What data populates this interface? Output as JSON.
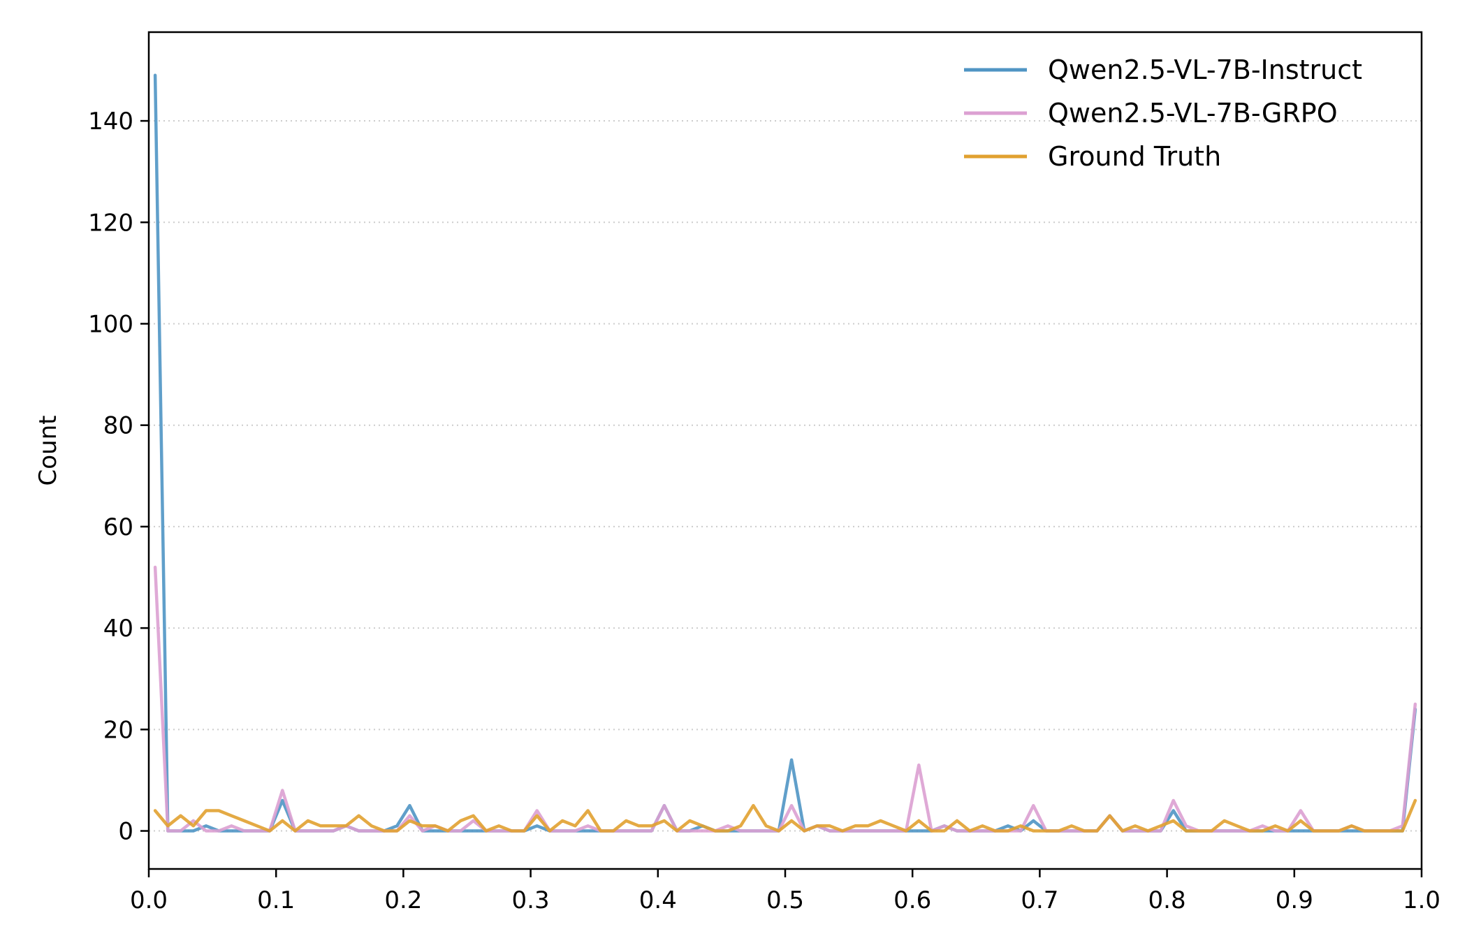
{
  "chart_data": {
    "type": "line",
    "title": "",
    "xlabel": "",
    "ylabel": "Count",
    "xlim": [
      0.0,
      1.0
    ],
    "ylim": [
      -7.5,
      157.5
    ],
    "xticks": [
      "0.0",
      "0.1",
      "0.2",
      "0.3",
      "0.4",
      "0.5",
      "0.6",
      "0.7",
      "0.8",
      "0.9",
      "1.0"
    ],
    "yticks": [
      "0",
      "20",
      "40",
      "60",
      "80",
      "100",
      "120",
      "140"
    ],
    "grid": "y-dotted",
    "legend_position": "top-right",
    "x": [
      0.005,
      0.015,
      0.025,
      0.035,
      0.045,
      0.055,
      0.065,
      0.075,
      0.085,
      0.095,
      0.105,
      0.115,
      0.125,
      0.135,
      0.145,
      0.155,
      0.165,
      0.175,
      0.185,
      0.195,
      0.205,
      0.215,
      0.225,
      0.235,
      0.245,
      0.255,
      0.265,
      0.275,
      0.285,
      0.295,
      0.305,
      0.315,
      0.325,
      0.335,
      0.345,
      0.355,
      0.365,
      0.375,
      0.385,
      0.395,
      0.405,
      0.415,
      0.425,
      0.435,
      0.445,
      0.455,
      0.465,
      0.475,
      0.485,
      0.495,
      0.505,
      0.515,
      0.525,
      0.535,
      0.545,
      0.555,
      0.565,
      0.575,
      0.585,
      0.595,
      0.605,
      0.615,
      0.625,
      0.635,
      0.645,
      0.655,
      0.665,
      0.675,
      0.685,
      0.695,
      0.705,
      0.715,
      0.725,
      0.735,
      0.745,
      0.755,
      0.765,
      0.775,
      0.785,
      0.795,
      0.805,
      0.815,
      0.825,
      0.835,
      0.845,
      0.855,
      0.865,
      0.875,
      0.885,
      0.895,
      0.905,
      0.915,
      0.925,
      0.935,
      0.945,
      0.955,
      0.965,
      0.975,
      0.985,
      0.995
    ],
    "series": [
      {
        "name": "Qwen2.5-VL-7B-Instruct",
        "color": "#4f95c4",
        "values": [
          149,
          0,
          0,
          0,
          1,
          0,
          0,
          0,
          0,
          0,
          6,
          0,
          0,
          0,
          0,
          1,
          0,
          0,
          0,
          1,
          5,
          0,
          0,
          0,
          0,
          0,
          0,
          0,
          0,
          0,
          1,
          0,
          0,
          0,
          0,
          0,
          0,
          0,
          0,
          0,
          5,
          0,
          0,
          1,
          0,
          0,
          0,
          0,
          0,
          0,
          14,
          0,
          1,
          0,
          0,
          0,
          0,
          0,
          0,
          0,
          0,
          0,
          1,
          0,
          0,
          0,
          0,
          1,
          0,
          2,
          0,
          0,
          0,
          0,
          0,
          3,
          0,
          0,
          0,
          0,
          4,
          0,
          0,
          0,
          0,
          0,
          0,
          0,
          0,
          0,
          0,
          0,
          0,
          0,
          0,
          0,
          0,
          0,
          0,
          24
        ]
      },
      {
        "name": "Qwen2.5-VL-7B-GRPO",
        "color": "#dca0d2",
        "values": [
          52,
          0,
          0,
          2,
          0,
          0,
          1,
          0,
          0,
          0,
          8,
          0,
          0,
          0,
          0,
          1,
          0,
          0,
          0,
          0,
          3,
          0,
          1,
          0,
          0,
          2,
          0,
          0,
          0,
          0,
          4,
          0,
          0,
          0,
          1,
          0,
          0,
          0,
          0,
          0,
          5,
          0,
          0,
          0,
          0,
          1,
          0,
          0,
          0,
          0,
          5,
          0,
          1,
          0,
          0,
          0,
          0,
          0,
          0,
          0,
          13,
          0,
          1,
          0,
          0,
          0,
          0,
          0,
          0,
          5,
          0,
          0,
          0,
          0,
          0,
          3,
          0,
          0,
          0,
          0,
          6,
          1,
          0,
          0,
          0,
          0,
          0,
          1,
          0,
          0,
          4,
          0,
          0,
          0,
          1,
          0,
          0,
          0,
          1,
          25
        ]
      },
      {
        "name": "Ground Truth",
        "color": "#e1a130",
        "values": [
          4,
          1,
          3,
          1,
          4,
          4,
          3,
          2,
          1,
          0,
          2,
          0,
          2,
          1,
          1,
          1,
          3,
          1,
          0,
          0,
          2,
          1,
          1,
          0,
          2,
          3,
          0,
          1,
          0,
          0,
          3,
          0,
          2,
          1,
          4,
          0,
          0,
          2,
          1,
          1,
          2,
          0,
          2,
          1,
          0,
          0,
          1,
          5,
          1,
          0,
          2,
          0,
          1,
          1,
          0,
          1,
          1,
          2,
          1,
          0,
          2,
          0,
          0,
          2,
          0,
          1,
          0,
          0,
          1,
          0,
          0,
          0,
          1,
          0,
          0,
          3,
          0,
          1,
          0,
          1,
          2,
          0,
          0,
          0,
          2,
          1,
          0,
          0,
          1,
          0,
          2,
          0,
          0,
          0,
          1,
          0,
          0,
          0,
          0,
          6
        ]
      }
    ]
  }
}
